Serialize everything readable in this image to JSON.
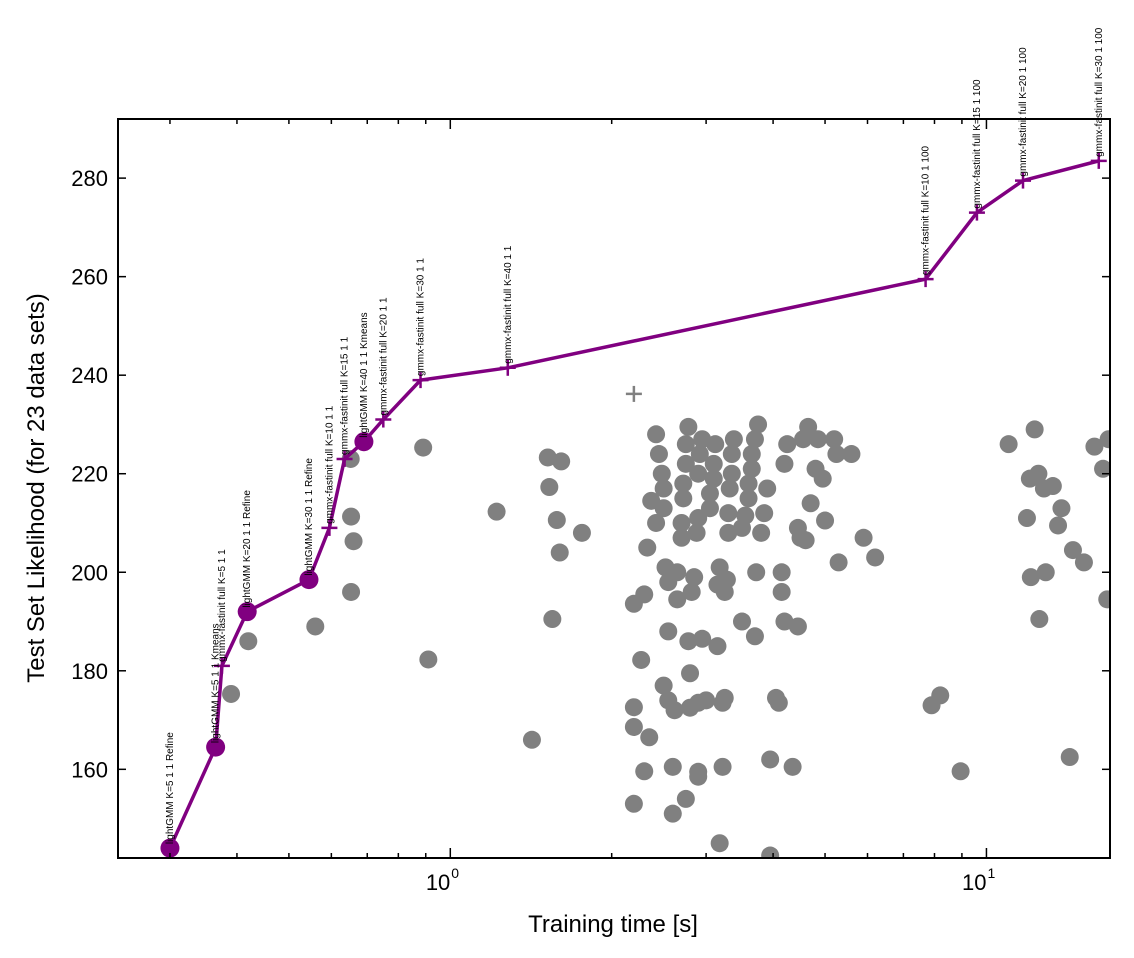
{
  "chart_data": {
    "type": "scatter",
    "xlabel": "Training time [s]",
    "ylabel": "Test Set Likelihood (for 23 data sets)",
    "xscale": "log",
    "xlim": [
      0.24,
      17.0
    ],
    "ylim": [
      142,
      292
    ],
    "x_ticks": [
      {
        "value": 1,
        "base": "10",
        "exp": "0"
      },
      {
        "value": 10,
        "base": "10",
        "exp": "1"
      }
    ],
    "y_ticks": [
      160,
      180,
      200,
      220,
      240,
      260,
      280
    ],
    "colors": {
      "frontier": "#800080",
      "others": "#808080"
    },
    "frontier_series": {
      "name": "",
      "points": [
        {
          "x": 0.3,
          "y": 144,
          "marker": "circle",
          "label": "lightGMM K=5 1 1 Refine"
        },
        {
          "x": 0.365,
          "y": 164.5,
          "marker": "circle",
          "label": "lightGMM K=5 1 1 Kmeans"
        },
        {
          "x": 0.375,
          "y": 181,
          "marker": "plus",
          "label": "gmmx-fastinit full K=5 1 1"
        },
        {
          "x": 0.418,
          "y": 192,
          "marker": "circle",
          "label": "lightGMM K=20 1 1 Refine"
        },
        {
          "x": 0.545,
          "y": 198.5,
          "marker": "circle",
          "label": "lightGMM K=30 1 1 Refine"
        },
        {
          "x": 0.595,
          "y": 209,
          "marker": "plus",
          "label": "gmmx-fastinit full K=10 1 1"
        },
        {
          "x": 0.635,
          "y": 223,
          "marker": "plus",
          "label": "gmmx-fastinit full K=15 1 1"
        },
        {
          "x": 0.69,
          "y": 226.5,
          "marker": "circle",
          "label": "lightGMM K=40 1 1 Kmeans"
        },
        {
          "x": 0.75,
          "y": 231,
          "marker": "plus",
          "label": "gmmx-fastinit full K=20 1 1"
        },
        {
          "x": 0.88,
          "y": 239,
          "marker": "plus",
          "label": "gmmx-fastinit full K=30 1 1"
        },
        {
          "x": 1.28,
          "y": 241.5,
          "marker": "plus",
          "label": "gmmx-fastinit full K=40 1 1"
        },
        {
          "x": 7.7,
          "y": 259.5,
          "marker": "plus",
          "label": "gmmx-fastinit full K=10 1 100"
        },
        {
          "x": 9.6,
          "y": 273,
          "marker": "plus",
          "label": "gmmx-fastinit full K=15 1 100"
        },
        {
          "x": 11.7,
          "y": 279.5,
          "marker": "plus",
          "label": "gmmx-fastinit full K=20 1 100"
        },
        {
          "x": 16.2,
          "y": 283.5,
          "marker": "plus",
          "label": "gmmx-fastinit full K=30 1 100"
        }
      ]
    },
    "other_points": [
      {
        "x": 0.42,
        "y": 186
      },
      {
        "x": 0.39,
        "y": 175.3
      },
      {
        "x": 0.56,
        "y": 189
      },
      {
        "x": 0.652,
        "y": 223
      },
      {
        "x": 0.653,
        "y": 211.3
      },
      {
        "x": 0.66,
        "y": 206.3
      },
      {
        "x": 0.653,
        "y": 196
      },
      {
        "x": 0.89,
        "y": 225.3
      },
      {
        "x": 0.91,
        "y": 182.3
      },
      {
        "x": 1.22,
        "y": 212.3
      },
      {
        "x": 1.42,
        "y": 166
      },
      {
        "x": 1.52,
        "y": 223.3
      },
      {
        "x": 1.53,
        "y": 217.3
      },
      {
        "x": 1.58,
        "y": 210.6
      },
      {
        "x": 1.6,
        "y": 204
      },
      {
        "x": 1.55,
        "y": 190.5
      },
      {
        "x": 1.61,
        "y": 222.5
      },
      {
        "x": 1.76,
        "y": 208
      },
      {
        "x": 2.2,
        "y": 193.6
      },
      {
        "x": 2.2,
        "y": 172.6
      },
      {
        "x": 2.2,
        "y": 168.6
      },
      {
        "x": 2.2,
        "y": 153
      },
      {
        "x": 2.27,
        "y": 182.2
      },
      {
        "x": 2.3,
        "y": 159.6
      },
      {
        "x": 2.35,
        "y": 166.5
      },
      {
        "x": 2.3,
        "y": 195.5
      },
      {
        "x": 2.33,
        "y": 205
      },
      {
        "x": 2.37,
        "y": 214.5
      },
      {
        "x": 2.42,
        "y": 210
      },
      {
        "x": 2.42,
        "y": 228
      },
      {
        "x": 2.45,
        "y": 224
      },
      {
        "x": 2.48,
        "y": 220
      },
      {
        "x": 2.5,
        "y": 217
      },
      {
        "x": 2.5,
        "y": 213
      },
      {
        "x": 2.52,
        "y": 201
      },
      {
        "x": 2.55,
        "y": 198
      },
      {
        "x": 2.55,
        "y": 188
      },
      {
        "x": 2.5,
        "y": 177
      },
      {
        "x": 2.55,
        "y": 174
      },
      {
        "x": 2.6,
        "y": 151
      },
      {
        "x": 2.6,
        "y": 160.5
      },
      {
        "x": 2.62,
        "y": 172
      },
      {
        "x": 2.65,
        "y": 194.5
      },
      {
        "x": 2.65,
        "y": 200
      },
      {
        "x": 2.7,
        "y": 207
      },
      {
        "x": 2.7,
        "y": 210
      },
      {
        "x": 2.72,
        "y": 215
      },
      {
        "x": 2.72,
        "y": 218
      },
      {
        "x": 2.75,
        "y": 222
      },
      {
        "x": 2.75,
        "y": 226
      },
      {
        "x": 2.78,
        "y": 229.5
      },
      {
        "x": 2.78,
        "y": 186
      },
      {
        "x": 2.8,
        "y": 179.5
      },
      {
        "x": 2.75,
        "y": 154
      },
      {
        "x": 2.8,
        "y": 172.5
      },
      {
        "x": 2.82,
        "y": 196
      },
      {
        "x": 2.85,
        "y": 199
      },
      {
        "x": 2.88,
        "y": 208
      },
      {
        "x": 2.9,
        "y": 211
      },
      {
        "x": 2.9,
        "y": 220
      },
      {
        "x": 2.92,
        "y": 224
      },
      {
        "x": 2.95,
        "y": 227
      },
      {
        "x": 2.9,
        "y": 173.5
      },
      {
        "x": 2.9,
        "y": 159.5
      },
      {
        "x": 2.9,
        "y": 158.5
      },
      {
        "x": 2.95,
        "y": 186.5
      },
      {
        "x": 3.0,
        "y": 174
      },
      {
        "x": 3.05,
        "y": 213
      },
      {
        "x": 3.05,
        "y": 216
      },
      {
        "x": 3.1,
        "y": 219
      },
      {
        "x": 3.1,
        "y": 222
      },
      {
        "x": 3.12,
        "y": 226
      },
      {
        "x": 3.15,
        "y": 197.5
      },
      {
        "x": 3.18,
        "y": 201
      },
      {
        "x": 3.15,
        "y": 185
      },
      {
        "x": 3.18,
        "y": 145
      },
      {
        "x": 3.22,
        "y": 160.5
      },
      {
        "x": 3.22,
        "y": 173.5
      },
      {
        "x": 3.25,
        "y": 174.5
      },
      {
        "x": 3.25,
        "y": 196
      },
      {
        "x": 3.28,
        "y": 198.5
      },
      {
        "x": 3.3,
        "y": 208
      },
      {
        "x": 3.3,
        "y": 212
      },
      {
        "x": 3.32,
        "y": 217
      },
      {
        "x": 3.35,
        "y": 220
      },
      {
        "x": 3.35,
        "y": 224
      },
      {
        "x": 3.38,
        "y": 227
      },
      {
        "x": 3.5,
        "y": 190
      },
      {
        "x": 3.5,
        "y": 209
      },
      {
        "x": 3.55,
        "y": 211.5
      },
      {
        "x": 3.6,
        "y": 215
      },
      {
        "x": 3.6,
        "y": 218
      },
      {
        "x": 3.65,
        "y": 221
      },
      {
        "x": 3.65,
        "y": 224
      },
      {
        "x": 3.7,
        "y": 227
      },
      {
        "x": 3.7,
        "y": 187
      },
      {
        "x": 3.72,
        "y": 200
      },
      {
        "x": 3.75,
        "y": 230
      },
      {
        "x": 3.8,
        "y": 208
      },
      {
        "x": 3.85,
        "y": 212
      },
      {
        "x": 3.9,
        "y": 217
      },
      {
        "x": 3.95,
        "y": 162
      },
      {
        "x": 3.95,
        "y": 142.5
      },
      {
        "x": 4.05,
        "y": 174.5
      },
      {
        "x": 4.1,
        "y": 173.5
      },
      {
        "x": 4.15,
        "y": 196
      },
      {
        "x": 4.15,
        "y": 200
      },
      {
        "x": 4.2,
        "y": 190
      },
      {
        "x": 4.2,
        "y": 222
      },
      {
        "x": 4.25,
        "y": 226
      },
      {
        "x": 4.35,
        "y": 160.5
      },
      {
        "x": 4.45,
        "y": 189
      },
      {
        "x": 4.45,
        "y": 209
      },
      {
        "x": 4.5,
        "y": 207
      },
      {
        "x": 4.55,
        "y": 227
      },
      {
        "x": 4.6,
        "y": 206.5
      },
      {
        "x": 4.65,
        "y": 229.5
      },
      {
        "x": 4.7,
        "y": 214
      },
      {
        "x": 4.8,
        "y": 221
      },
      {
        "x": 4.85,
        "y": 227
      },
      {
        "x": 4.95,
        "y": 219
      },
      {
        "x": 5.0,
        "y": 210.5
      },
      {
        "x": 5.2,
        "y": 227
      },
      {
        "x": 5.25,
        "y": 224
      },
      {
        "x": 5.3,
        "y": 202
      },
      {
        "x": 5.6,
        "y": 224
      },
      {
        "x": 5.9,
        "y": 207
      },
      {
        "x": 6.2,
        "y": 203
      },
      {
        "x": 7.9,
        "y": 173
      },
      {
        "x": 8.2,
        "y": 175
      },
      {
        "x": 8.95,
        "y": 159.6
      },
      {
        "x": 11.0,
        "y": 226
      },
      {
        "x": 11.9,
        "y": 211
      },
      {
        "x": 12.05,
        "y": 219
      },
      {
        "x": 12.1,
        "y": 199
      },
      {
        "x": 12.3,
        "y": 229
      },
      {
        "x": 12.5,
        "y": 220
      },
      {
        "x": 12.55,
        "y": 190.5
      },
      {
        "x": 12.8,
        "y": 217
      },
      {
        "x": 12.9,
        "y": 200
      },
      {
        "x": 13.3,
        "y": 217.5
      },
      {
        "x": 13.6,
        "y": 209.5
      },
      {
        "x": 13.8,
        "y": 213
      },
      {
        "x": 14.3,
        "y": 162.5
      },
      {
        "x": 14.5,
        "y": 204.5
      },
      {
        "x": 15.2,
        "y": 202
      },
      {
        "x": 15.9,
        "y": 225.5
      },
      {
        "x": 16.5,
        "y": 221
      },
      {
        "x": 16.8,
        "y": 194.5
      },
      {
        "x": 16.9,
        "y": 227
      }
    ],
    "other_plus_points": [
      {
        "x": 2.2,
        "y": 236.2
      }
    ]
  }
}
